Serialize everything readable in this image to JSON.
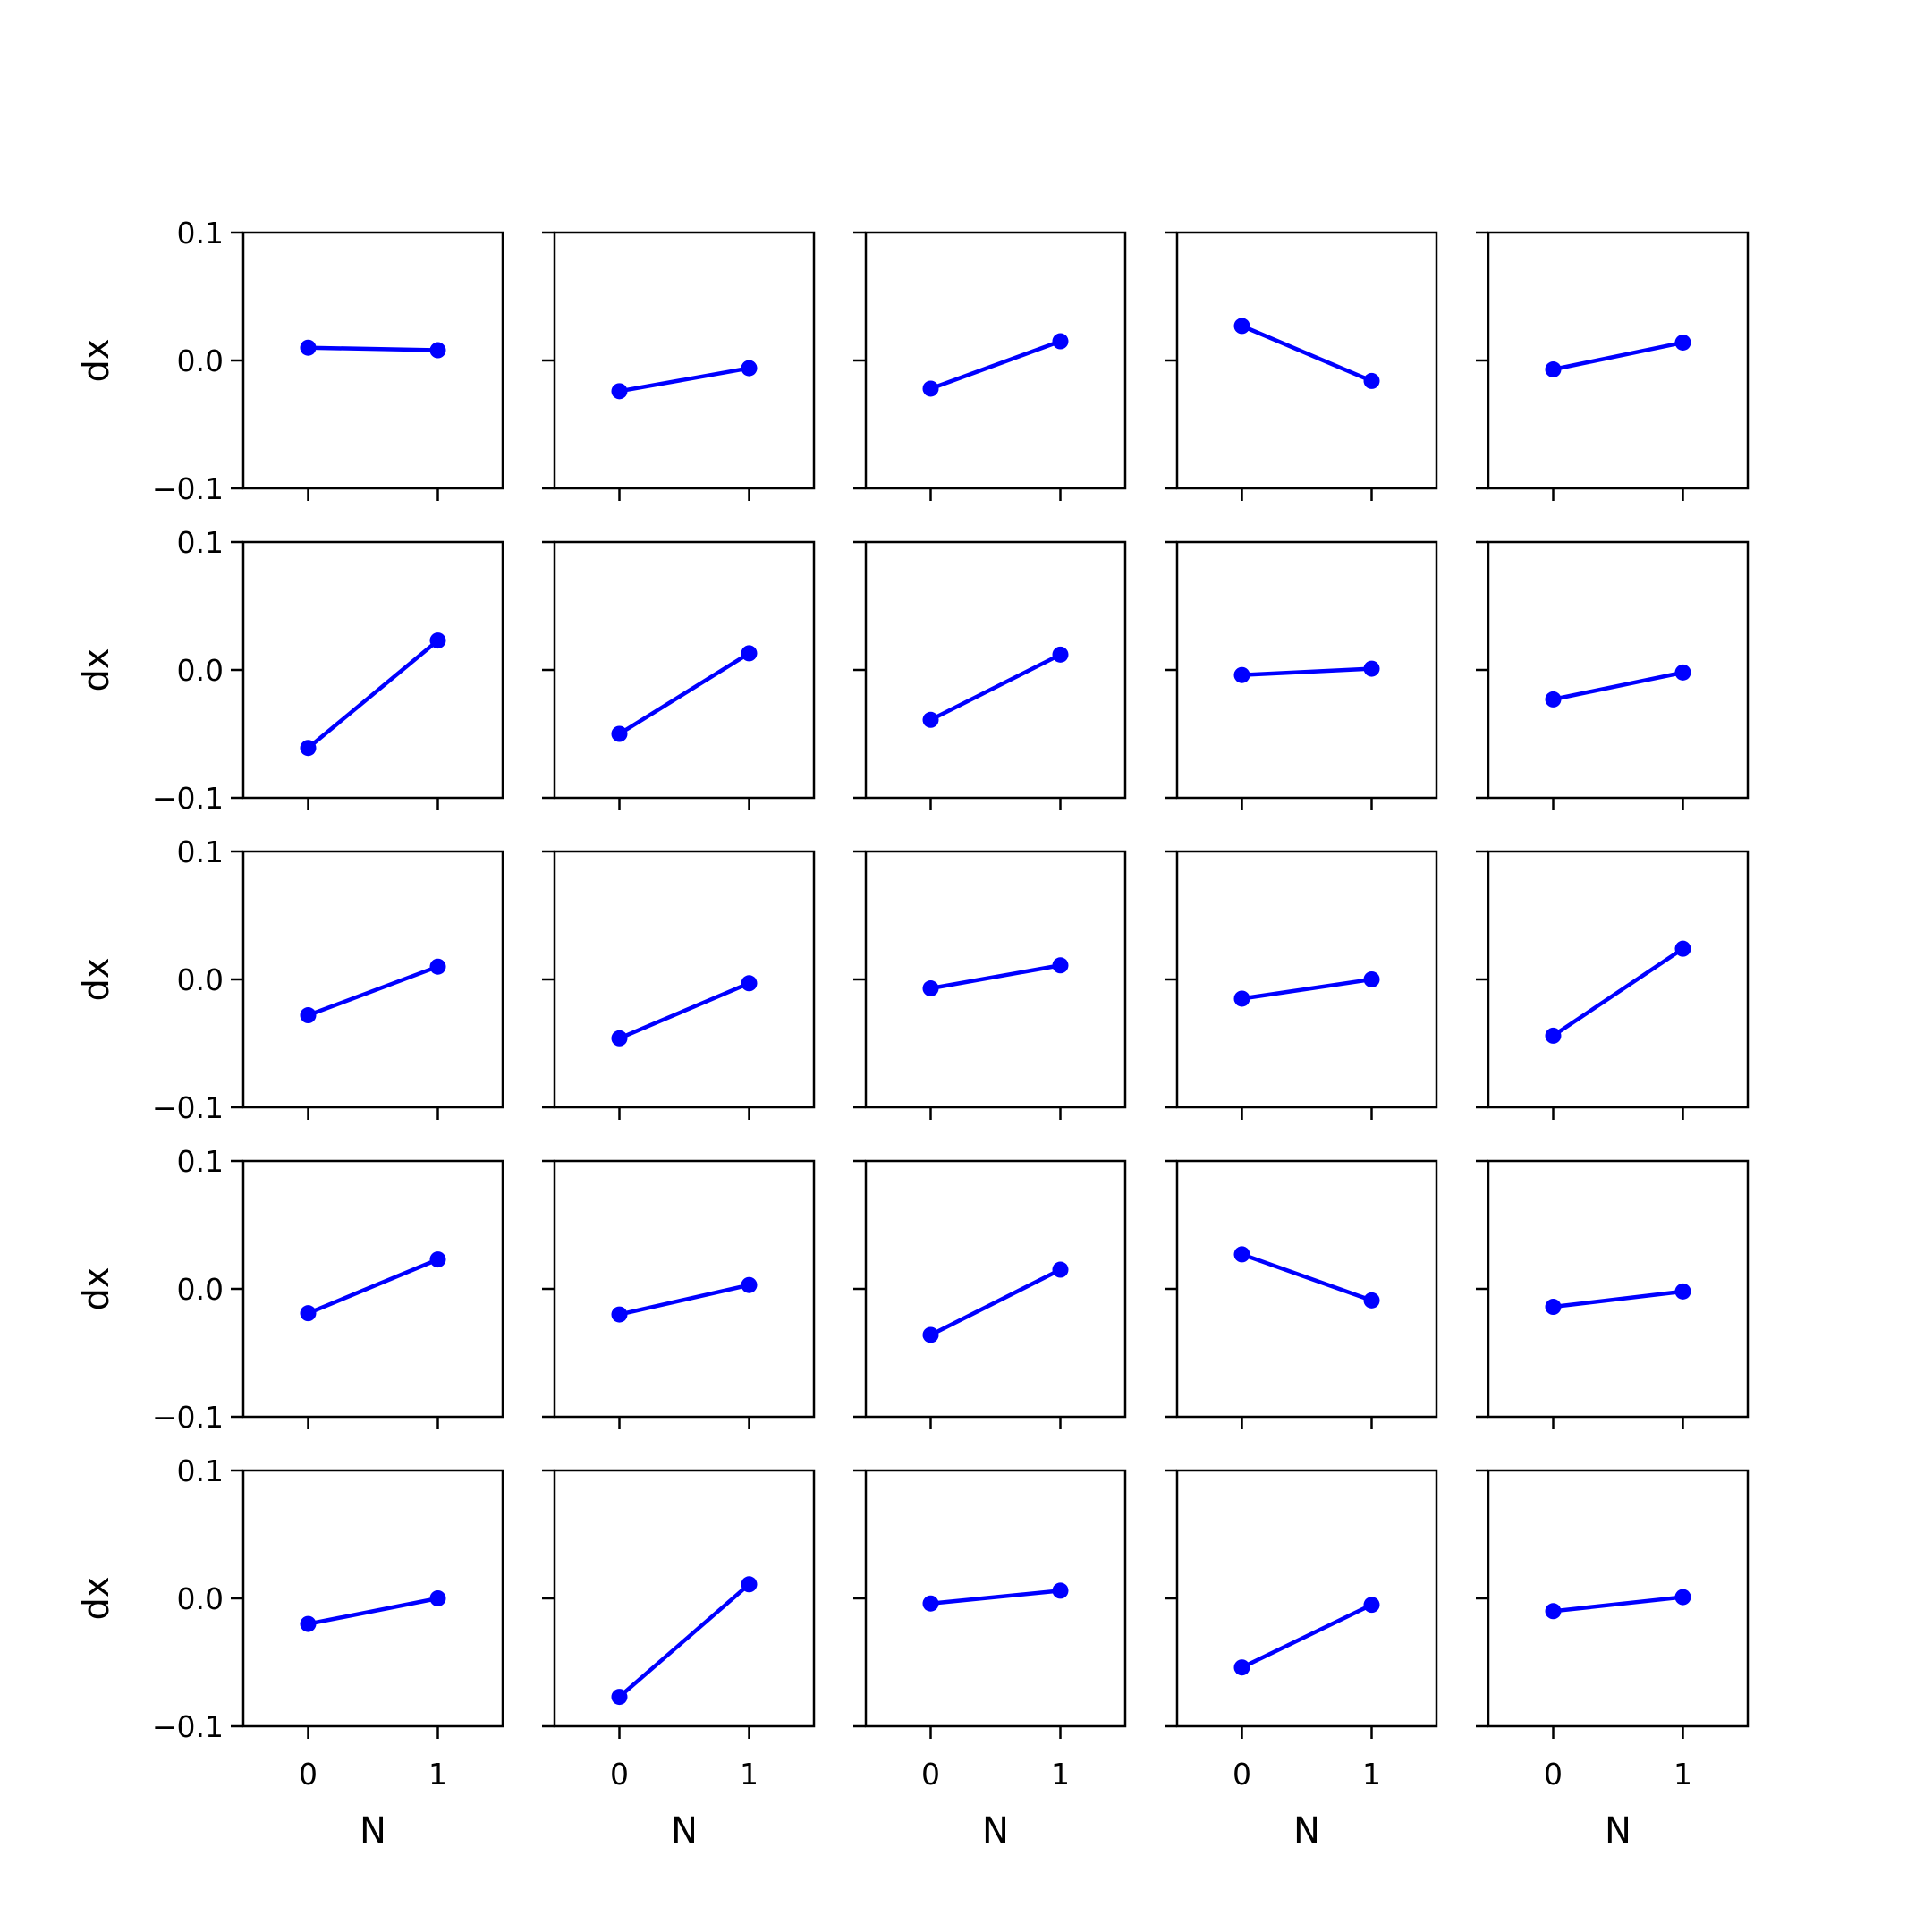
{
  "chart_data": {
    "type": "line",
    "layout": "5x5 grid of small multiples, shared axes",
    "xlabel": "N",
    "ylabel": "dx",
    "x": [
      0,
      1
    ],
    "xticks": [
      "0",
      "1"
    ],
    "yticks": [
      "−0.1",
      "0.0",
      "0.1"
    ],
    "ytick_values": [
      -0.1,
      0.0,
      0.1
    ],
    "xlim": [
      -0.5,
      1.5
    ],
    "ylim": [
      -0.1,
      0.1
    ],
    "grid": false,
    "line_color": "#0000ff",
    "marker": "circle",
    "panels": [
      [
        [
          0.01,
          0.008
        ],
        [
          -0.024,
          -0.006
        ],
        [
          -0.022,
          0.015
        ],
        [
          0.027,
          -0.016
        ],
        [
          -0.007,
          0.014
        ]
      ],
      [
        [
          -0.061,
          0.023
        ],
        [
          -0.05,
          0.013
        ],
        [
          -0.039,
          0.012
        ],
        [
          -0.004,
          0.001
        ],
        [
          -0.023,
          -0.002
        ]
      ],
      [
        [
          -0.028,
          0.01
        ],
        [
          -0.046,
          -0.003
        ],
        [
          -0.007,
          0.011
        ],
        [
          -0.015,
          0.0
        ],
        [
          -0.044,
          0.024
        ]
      ],
      [
        [
          -0.019,
          0.023
        ],
        [
          -0.02,
          0.003
        ],
        [
          -0.036,
          0.015
        ],
        [
          0.027,
          -0.009
        ],
        [
          -0.014,
          -0.002
        ]
      ],
      [
        [
          -0.02,
          0.0
        ],
        [
          -0.077,
          0.011
        ],
        [
          -0.004,
          0.006
        ],
        [
          -0.054,
          -0.005
        ],
        [
          -0.01,
          0.001
        ]
      ]
    ]
  }
}
